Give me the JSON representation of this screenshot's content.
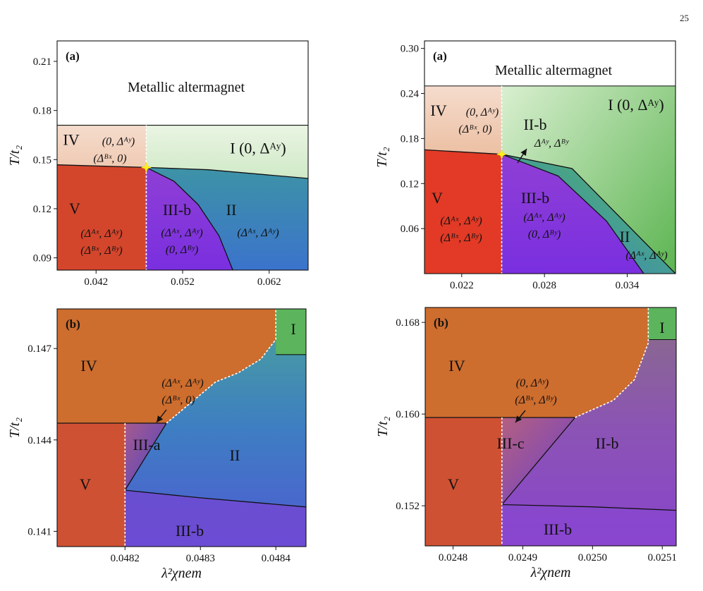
{
  "page_number": "25",
  "chart_data": [
    {
      "type": "phase-diagram",
      "panel_label": "(a)",
      "ylabel": "T/t₂",
      "xlabel": "",
      "xlim": [
        0.0375,
        0.0665
      ],
      "ylim": [
        0.0825,
        0.2225
      ],
      "xticks": [
        "0.042",
        "0.052",
        "0.062"
      ],
      "yticks": [
        "0.09",
        "0.12",
        "0.15",
        "0.18",
        "0.21"
      ],
      "metallic_label": "Metallic altermagnet",
      "regions": [
        {
          "label": "IV",
          "order": [
            "(0, Δᴬʸ)",
            "(Δᴮˣ, 0)"
          ]
        },
        {
          "label": "I",
          "order": [
            "(0, Δᴬʸ)"
          ]
        },
        {
          "label": "V",
          "order": [
            "(Δᴬˣ, Δᴬʸ)",
            "(Δᴮˣ, Δᴮʸ)"
          ]
        },
        {
          "label": "III-b",
          "order": [
            "(Δᴬˣ, Δᴬʸ)",
            "(0, Δᴮʸ)"
          ]
        },
        {
          "label": "II",
          "order": [
            "(Δᴬˣ, Δᴬʸ)"
          ]
        }
      ],
      "boundaries": {
        "metallic_Tc": 0.171,
        "first_order_x": 0.0478,
        "tricritical_point": [
          0.0478,
          0.1452
        ],
        "upper_line": [
          [
            0.0375,
            0.1468
          ],
          [
            0.0478,
            0.1452
          ],
          [
            0.055,
            0.1438
          ],
          [
            0.0665,
            0.1385
          ]
        ],
        "lower_curve": [
          [
            0.0478,
            0.1452
          ],
          [
            0.051,
            0.1368
          ],
          [
            0.0538,
            0.1225
          ],
          [
            0.0562,
            0.1035
          ],
          [
            0.0578,
            0.0825
          ]
        ]
      }
    },
    {
      "type": "phase-diagram",
      "panel_label": "(a)",
      "ylabel": "T/t₂",
      "xlabel": "",
      "xlim": [
        0.0193,
        0.0375
      ],
      "ylim": [
        0.0,
        0.31
      ],
      "xticks": [
        "0.022",
        "0.028",
        "0.034"
      ],
      "yticks": [
        "0.06",
        "0.12",
        "0.18",
        "0.24",
        "0.30"
      ],
      "metallic_label": "Metallic altermagnet",
      "regions": [
        {
          "label": "IV",
          "order": [
            "(0, Δᴬʸ)",
            "(Δᴮˣ, 0)"
          ]
        },
        {
          "label": "I",
          "order": [
            "(0, Δᴬʸ)"
          ]
        },
        {
          "label": "II-b",
          "order": [
            "Δᴬʸ, Δᴮʸ"
          ]
        },
        {
          "label": "V",
          "order": [
            "(Δᴬˣ, Δᴬʸ)",
            "(Δᴮˣ, Δᴮʸ)"
          ]
        },
        {
          "label": "III-b",
          "order": [
            "(Δᴬˣ, Δᴬʸ)",
            "(0, Δᴮʸ)"
          ]
        },
        {
          "label": "II",
          "order": [
            "(Δᴬˣ, Δᴬʸ)"
          ]
        }
      ],
      "boundaries": {
        "metallic_Tc": 0.25,
        "first_order_x": 0.0249,
        "tricritical_point": [
          0.0249,
          0.159
        ],
        "upper_line": [
          [
            0.0193,
            0.165
          ],
          [
            0.0249,
            0.159
          ],
          [
            0.03,
            0.14
          ],
          [
            0.0375,
            0.0
          ]
        ],
        "lower_curve": [
          [
            0.0249,
            0.159
          ],
          [
            0.029,
            0.13
          ],
          [
            0.0325,
            0.07
          ],
          [
            0.0352,
            0.0
          ]
        ]
      }
    },
    {
      "type": "phase-diagram",
      "panel_label": "(b)",
      "ylabel": "T/t₂",
      "xlabel": "λ²χnem",
      "xlim": [
        0.04811,
        0.04844
      ],
      "ylim": [
        0.1405,
        0.1483
      ],
      "xticks": [
        "0.0482",
        "0.0483",
        "0.0484"
      ],
      "yticks": [
        "0.141",
        "0.144",
        "0.147"
      ],
      "regions": [
        {
          "label": "IV",
          "order": []
        },
        {
          "label": "I",
          "order": []
        },
        {
          "label": "III-a",
          "order": [
            "(Δᴬˣ, Δᴬʸ)",
            "(Δᴮˣ, 0)"
          ]
        },
        {
          "label": "II",
          "order": []
        },
        {
          "label": "V",
          "order": []
        },
        {
          "label": "III-b",
          "order": []
        }
      ],
      "boundaries": {
        "first_order_x": 0.0482,
        "first_order_y": 0.14455,
        "first_order_curve": [
          [
            0.048255,
            0.14455
          ],
          [
            0.04832,
            0.1459
          ],
          [
            0.04835,
            0.1462
          ],
          [
            0.04838,
            0.14665
          ],
          [
            0.0484,
            0.1473
          ],
          [
            0.0484,
            0.1483
          ]
        ],
        "I_boundary_y": 0.1468,
        "III_a_diagonal": [
          [
            0.0482,
            0.14235
          ],
          [
            0.048255,
            0.14455
          ]
        ],
        "lower_line": [
          [
            0.0482,
            0.14235
          ],
          [
            0.0483,
            0.1421
          ],
          [
            0.04844,
            0.1418
          ]
        ]
      }
    },
    {
      "type": "phase-diagram",
      "panel_label": "(b)",
      "ylabel": "T/t₂",
      "xlabel": "λ²χnem",
      "xlim": [
        0.02476,
        0.02512
      ],
      "ylim": [
        0.1485,
        0.1693
      ],
      "xticks": [
        "0.0248",
        "0.0249",
        "0.0250",
        "0.0251"
      ],
      "yticks": [
        "0.152",
        "0.160",
        "0.168"
      ],
      "regions": [
        {
          "label": "IV",
          "order": []
        },
        {
          "label": "I",
          "order": []
        },
        {
          "label": "III-c",
          "order": [
            "(0, Δᴬʸ)",
            "(Δᴮˣ, Δᴮʸ)"
          ]
        },
        {
          "label": "II-b",
          "order": []
        },
        {
          "label": "V",
          "order": []
        },
        {
          "label": "III-b",
          "order": []
        }
      ],
      "boundaries": {
        "first_order_x": 0.02487,
        "first_order_y": 0.1597,
        "first_order_curve": [
          [
            0.024975,
            0.1597
          ],
          [
            0.02503,
            0.1612
          ],
          [
            0.02506,
            0.163
          ],
          [
            0.02508,
            0.1662
          ],
          [
            0.02508,
            0.1693
          ]
        ],
        "I_boundary_y": 0.1665,
        "III_c_diagonal": [
          [
            0.02487,
            0.1521
          ],
          [
            0.024975,
            0.1597
          ]
        ],
        "lower_line": [
          [
            0.02487,
            0.1521
          ],
          [
            0.025,
            0.1519
          ],
          [
            0.02512,
            0.1516
          ]
        ]
      }
    }
  ]
}
